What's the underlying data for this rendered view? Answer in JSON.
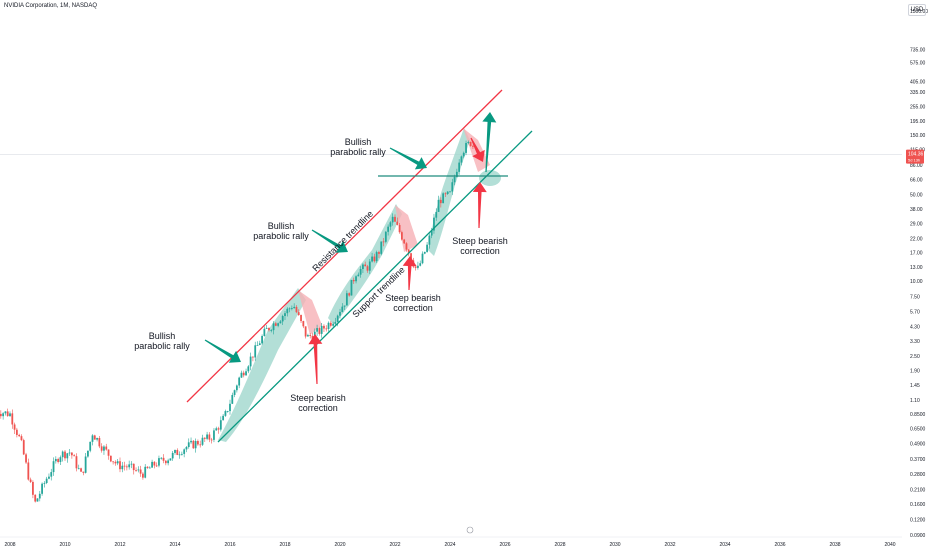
{
  "header": {
    "title": "NVIDIA Corporation, 1M, NASDAQ",
    "currency": "USD"
  },
  "colors": {
    "up": "#26a69a",
    "down": "#ef5350",
    "resistance": "#f23645",
    "support": "#089981",
    "green_arrow": "#089981",
    "red_arrow": "#f23645",
    "green_fill": "#9ad4ca",
    "red_fill": "#f6b0b5"
  },
  "chart_data": {
    "type": "candlestick",
    "title": "NVIDIA Corporation, 1M, NASDAQ",
    "scale": "log",
    "x_ticks": [
      "2008",
      "2010",
      "2012",
      "2014",
      "2016",
      "2018",
      "2020",
      "2022",
      "2024",
      "2026",
      "2028",
      "2030",
      "2032",
      "2034",
      "2036",
      "2038",
      "2040"
    ],
    "y_ticks": [
      "1500.00",
      "735.00",
      "575.00",
      "405.00",
      "335.00",
      "255.00",
      "195.00",
      "150.00",
      "115.00",
      "86.00",
      "66.00",
      "50.00",
      "38.00",
      "29.00",
      "22.00",
      "17.00",
      "13.00",
      "10.00",
      "7.50",
      "5.70",
      "4.30",
      "3.30",
      "2.50",
      "1.90",
      "1.45",
      "1.10",
      "0.8500",
      "0.6500",
      "0.4900",
      "0.3700",
      "0.2800",
      "0.2100",
      "0.1600",
      "0.1200",
      "0.0900"
    ],
    "last_price": {
      "value": "104.36",
      "countdown": "5d 13h"
    },
    "price_path": [
      [
        "2007.5",
        0.9
      ],
      [
        "2008.0",
        0.85
      ],
      [
        "2008.4",
        0.5
      ],
      [
        "2008.9",
        0.16
      ],
      [
        "2009.3",
        0.25
      ],
      [
        "2009.8",
        0.4
      ],
      [
        "2010.2",
        0.42
      ],
      [
        "2010.6",
        0.27
      ],
      [
        "2011.0",
        0.6
      ],
      [
        "2011.4",
        0.45
      ],
      [
        "2011.9",
        0.33
      ],
      [
        "2012.3",
        0.32
      ],
      [
        "2012.8",
        0.28
      ],
      [
        "2013.3",
        0.34
      ],
      [
        "2013.8",
        0.38
      ],
      [
        "2014.3",
        0.45
      ],
      [
        "2014.8",
        0.5
      ],
      [
        "2015.3",
        0.55
      ],
      [
        "2015.8",
        0.8
      ],
      [
        "2016.3",
        1.6
      ],
      [
        "2016.8",
        2.5
      ],
      [
        "2017.3",
        4.0
      ],
      [
        "2017.8",
        5.0
      ],
      [
        "2018.3",
        6.5
      ],
      [
        "2018.8",
        3.5
      ],
      [
        "2019.3",
        4.0
      ],
      [
        "2019.8",
        5.0
      ],
      [
        "2020.2",
        7.0
      ],
      [
        "2020.6",
        12.0
      ],
      [
        "2021.0",
        13.0
      ],
      [
        "2021.4",
        17.0
      ],
      [
        "2021.9",
        32.0
      ],
      [
        "2022.3",
        22.0
      ],
      [
        "2022.8",
        12.0
      ],
      [
        "2023.2",
        20.0
      ],
      [
        "2023.6",
        45.0
      ],
      [
        "2024.0",
        50.0
      ],
      [
        "2024.4",
        110.0
      ],
      [
        "2024.8",
        135.0
      ],
      [
        "2024.9",
        104.36
      ]
    ],
    "annotations": [
      {
        "id": "rally-1",
        "lines": [
          "Bullish",
          "parabolic rally"
        ]
      },
      {
        "id": "rally-2",
        "lines": [
          "Bullish",
          "parabolic rally"
        ]
      },
      {
        "id": "rally-3",
        "lines": [
          "Bullish",
          "parabolic rally"
        ]
      },
      {
        "id": "correction-1",
        "lines": [
          "Steep bearish",
          "correction"
        ]
      },
      {
        "id": "correction-2",
        "lines": [
          "Steep bearish",
          "correction"
        ]
      },
      {
        "id": "correction-3",
        "lines": [
          "Steep bearish",
          "correction"
        ]
      }
    ],
    "trendlines": {
      "resistance_label": "Resistance trendline",
      "support_label": "Support trendline"
    }
  }
}
